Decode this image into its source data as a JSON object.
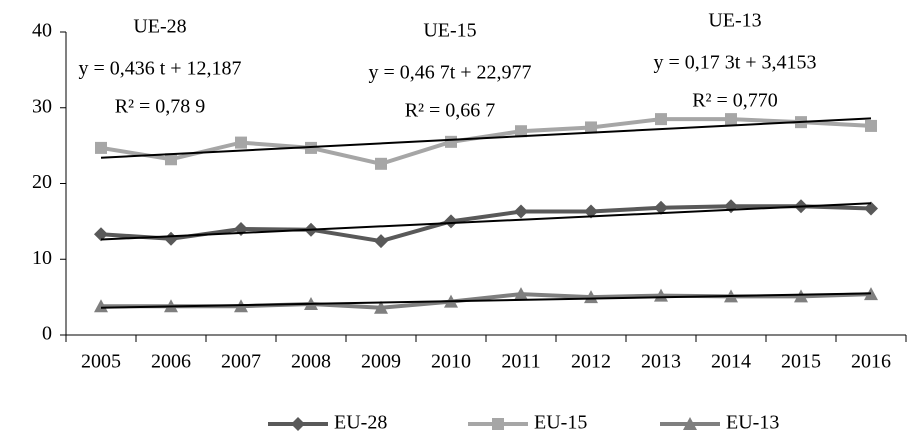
{
  "chart_data": {
    "type": "line",
    "categories": [
      "2005",
      "2006",
      "2007",
      "2008",
      "2009",
      "2010",
      "2011",
      "2012",
      "2013",
      "2014",
      "2015",
      "2016"
    ],
    "series": [
      {
        "name": "EU-28",
        "color": "#595959",
        "marker": "diamond",
        "values": [
          13.3,
          12.7,
          14.0,
          13.9,
          12.4,
          15.0,
          16.3,
          16.3,
          16.8,
          17.0,
          17.0,
          16.7
        ],
        "trend": [
          12.6,
          17.4
        ]
      },
      {
        "name": "EU-15",
        "color": "#a6a6a6",
        "marker": "square",
        "values": [
          24.7,
          23.2,
          25.4,
          24.7,
          22.6,
          25.5,
          26.9,
          27.4,
          28.5,
          28.5,
          28.1,
          27.6
        ],
        "trend": [
          23.4,
          28.6
        ]
      },
      {
        "name": "EU-13",
        "color": "#7f7f7f",
        "marker": "triangle",
        "values": [
          3.8,
          3.8,
          3.8,
          4.1,
          3.6,
          4.4,
          5.4,
          5.0,
          5.2,
          5.1,
          5.1,
          5.4
        ],
        "trend": [
          3.6,
          5.5
        ]
      }
    ],
    "trend_color": "#000000",
    "annotations": [
      [
        "UE-28",
        "y = 0,436 t + 12,187",
        "R² = 0,78 9"
      ],
      [
        "UE-15",
        "y = 0,46 7t + 22,977",
        "R² = 0,66 7"
      ],
      [
        "UE-13",
        "y = 0,17 3t + 3,4153",
        "R² = 0,770"
      ]
    ],
    "ylim": [
      0,
      40
    ],
    "yticks": [
      0,
      10,
      20,
      30,
      40
    ],
    "grid": false,
    "legend": "bottom"
  }
}
